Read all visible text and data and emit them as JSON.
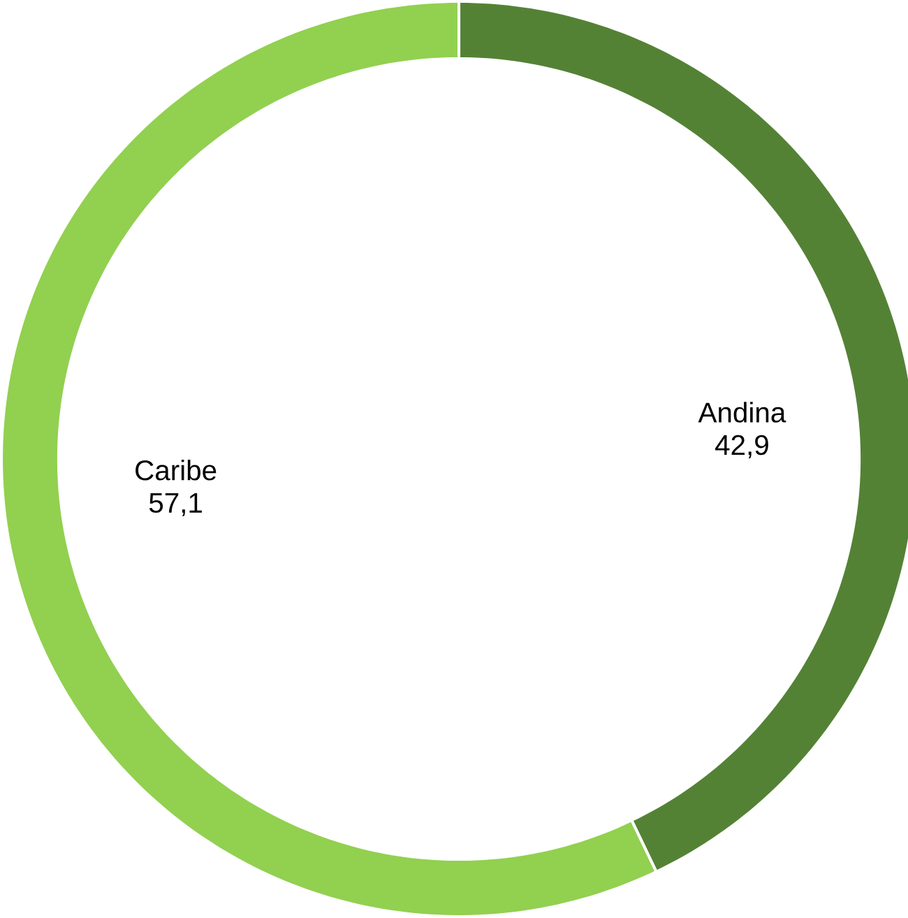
{
  "chart_data": {
    "type": "donut",
    "categories": [
      "Andina",
      "Caribe"
    ],
    "values": [
      42.9,
      57.1
    ],
    "value_labels": [
      "42,9",
      "57,1"
    ],
    "colors": [
      "#548235",
      "#92d050"
    ]
  }
}
